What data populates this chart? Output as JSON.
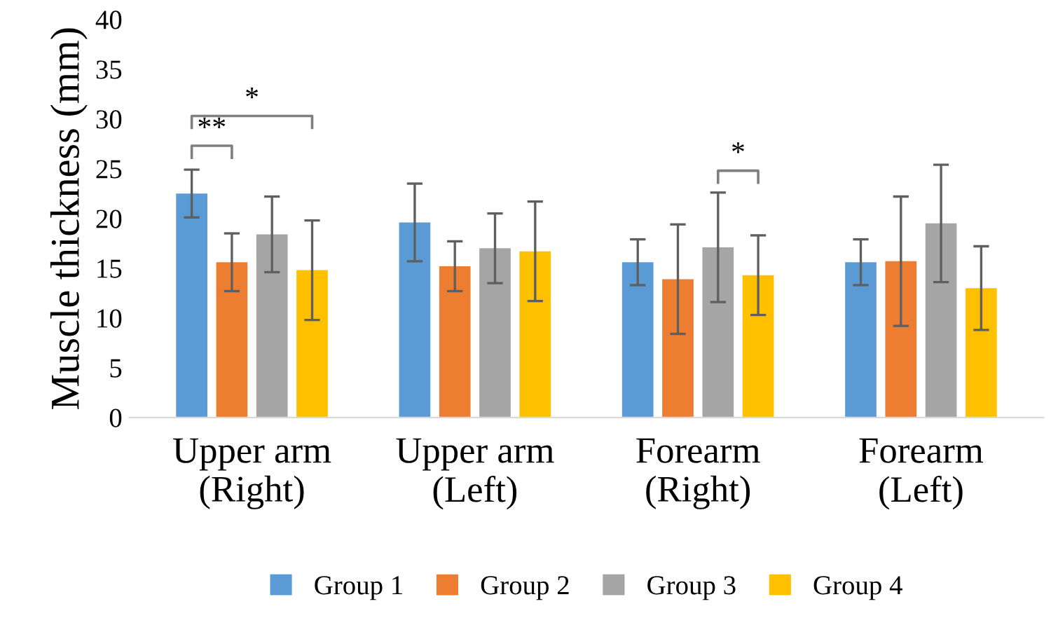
{
  "chart_data": {
    "type": "bar",
    "ylabel": "Muscle thickness (mm)",
    "categories": [
      "Upper arm\n(Right)",
      "Upper arm\n(Left)",
      "Forearm\n(Right)",
      "Forearm\n(Left)"
    ],
    "series": [
      {
        "name": "Group 1",
        "color": "#5b9bd5",
        "values": [
          22.5,
          19.6,
          15.6,
          15.6
        ],
        "errors": [
          2.4,
          3.9,
          2.3,
          2.3
        ]
      },
      {
        "name": "Group 2",
        "color": "#ed7d31",
        "values": [
          15.6,
          15.2,
          13.9,
          15.7
        ],
        "errors": [
          2.9,
          2.5,
          5.5,
          6.5
        ]
      },
      {
        "name": "Group 3",
        "color": "#a5a5a5",
        "values": [
          18.4,
          17.0,
          17.1,
          19.5
        ],
        "errors": [
          3.8,
          3.5,
          5.5,
          5.9
        ]
      },
      {
        "name": "Group 4",
        "color": "#ffc000",
        "values": [
          14.8,
          16.7,
          14.3,
          13.0
        ],
        "errors": [
          5.0,
          5.0,
          4.0,
          4.2
        ]
      }
    ],
    "ylim": [
      0,
      40
    ],
    "yticks": [
      0,
      5,
      10,
      15,
      20,
      25,
      30,
      35,
      40
    ],
    "annotations": [
      "**",
      "*",
      "*"
    ],
    "legend": "bottom",
    "grid": false
  }
}
